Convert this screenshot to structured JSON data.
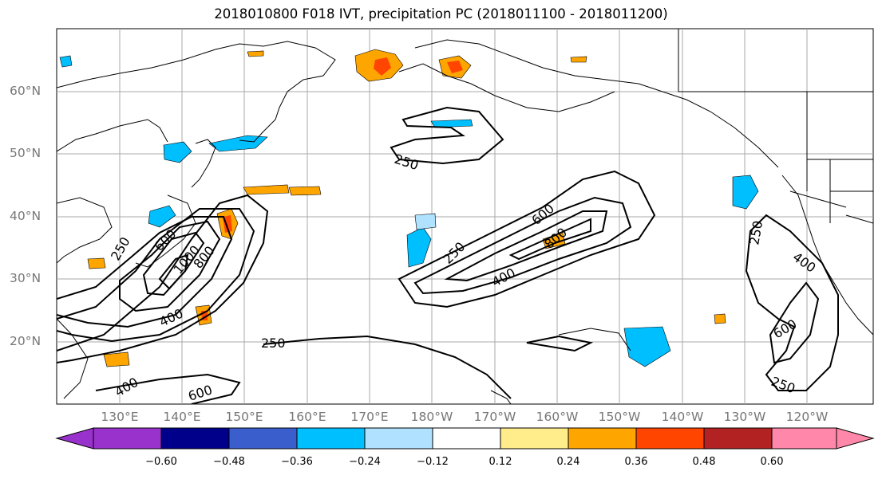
{
  "title": "2018010800 F018 IVT, precipitation PC (2018011100 - 2018011200)",
  "lat_labels": [
    "60°N",
    "50°N",
    "40°N",
    "30°N",
    "20°N"
  ],
  "lon_labels": [
    "130°E",
    "140°E",
    "150°E",
    "160°E",
    "170°E",
    "180°W",
    "170°W",
    "160°W",
    "150°W",
    "140°W",
    "130°W",
    "120°W"
  ],
  "contour_labels": [
    "250",
    "250",
    "400",
    "600",
    "1000",
    "800",
    "600",
    "250",
    "400",
    "600",
    "800",
    "250",
    "400",
    "600",
    "250",
    "400",
    "600",
    "250"
  ],
  "colorbar": {
    "ticks": [
      "−0.60",
      "−0.48",
      "−0.36",
      "−0.24",
      "−0.12",
      "0.12",
      "0.24",
      "0.36",
      "0.48",
      "0.60"
    ],
    "colors": [
      "#9932CC",
      "#00008B",
      "#3A5FCD",
      "#00BFFF",
      "#B0E2FF",
      "#FFFFFF",
      "#FFEC8B",
      "#FFA500",
      "#FF4500",
      "#B22222",
      "#FF88AA"
    ]
  }
}
